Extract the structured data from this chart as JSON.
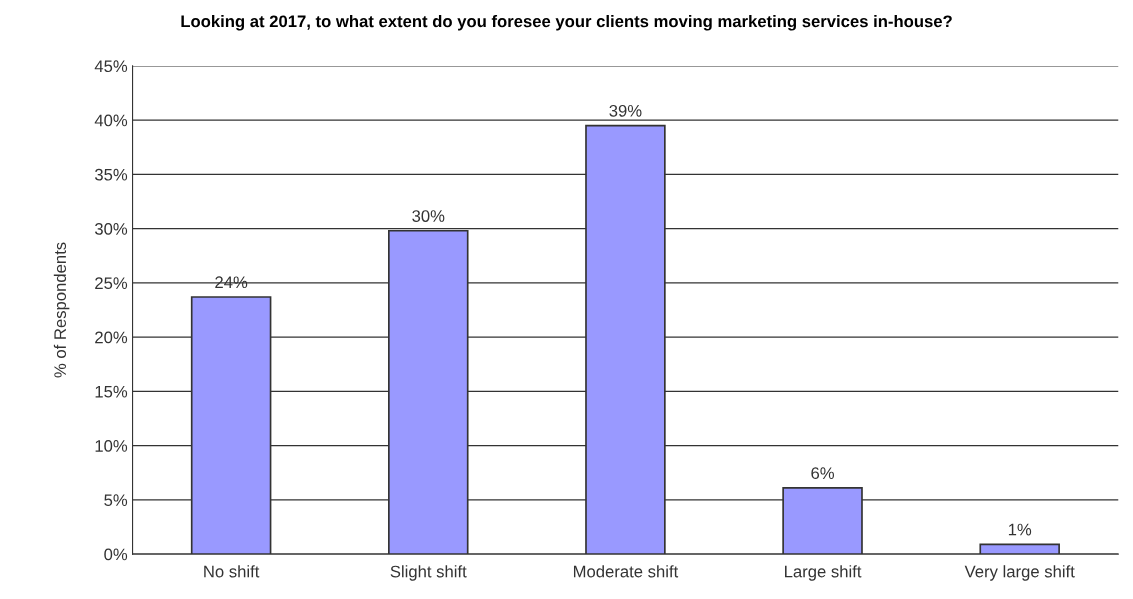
{
  "chart_data": {
    "type": "bar",
    "title": "Looking at 2017, to what extent do you foresee your clients moving marketing services in-house?",
    "ylabel": "% of Respondents",
    "categories": [
      "No shift",
      "Slight shift",
      "Moderate shift",
      "Large shift",
      "Very large shift"
    ],
    "values": [
      23.7,
      29.8,
      39.5,
      6.1,
      0.9
    ],
    "value_labels": [
      "24%",
      "30%",
      "39%",
      "6%",
      "1%"
    ],
    "color": "#9999ff",
    "ylim": [
      0,
      45
    ],
    "yticks": [
      {
        "value": 0,
        "label": "0%"
      },
      {
        "value": 5,
        "label": "5%"
      },
      {
        "value": 10,
        "label": "10%"
      },
      {
        "value": 15,
        "label": "15%"
      },
      {
        "value": 20,
        "label": "20%"
      },
      {
        "value": 25,
        "label": "25%"
      },
      {
        "value": 30,
        "label": "30%"
      },
      {
        "value": 35,
        "label": "35%"
      },
      {
        "value": 40,
        "label": "40%"
      },
      {
        "value": 45,
        "label": "45%"
      }
    ],
    "grid": "y",
    "legend": false
  }
}
